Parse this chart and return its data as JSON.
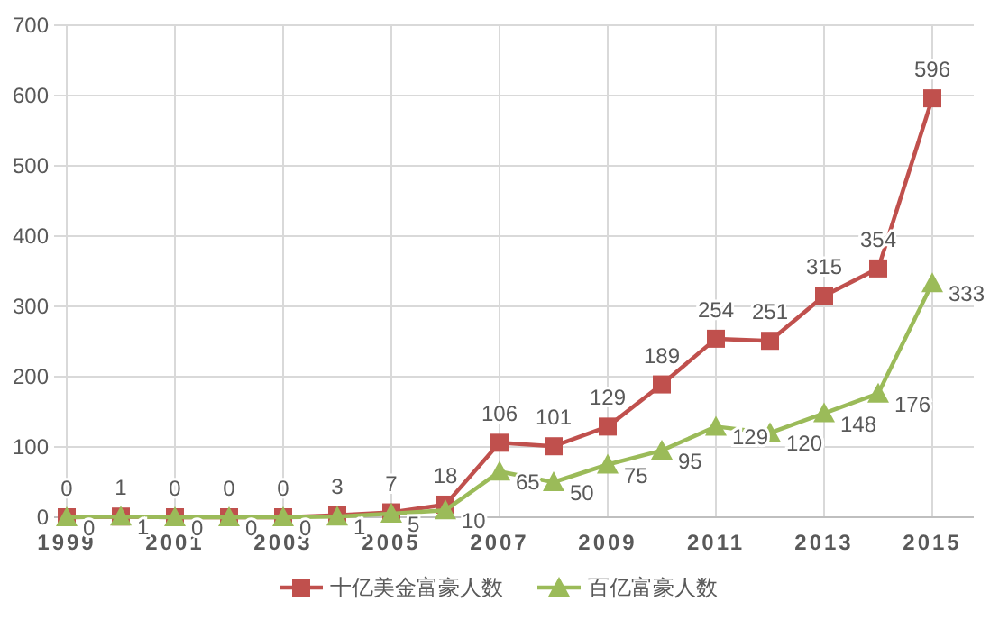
{
  "chart_data": {
    "type": "line",
    "categories": [
      "1999",
      null,
      "2001",
      null,
      "2003",
      null,
      "2005",
      null,
      "2007",
      null,
      "2009",
      null,
      "2011",
      null,
      "2013",
      null,
      "2015"
    ],
    "series": [
      {
        "name": "十亿美金富豪人数",
        "color": "#c0504d",
        "marker": "square",
        "values": [
          0,
          1,
          0,
          0,
          0,
          3,
          7,
          18,
          106,
          101,
          129,
          189,
          254,
          251,
          315,
          354,
          596
        ]
      },
      {
        "name": "百亿富豪人数",
        "color": "#9bbb59",
        "marker": "triangle",
        "values": [
          0,
          1,
          0,
          0,
          0,
          1,
          5,
          10,
          65,
          50,
          75,
          95,
          129,
          120,
          148,
          176,
          333
        ]
      }
    ],
    "ylim": [
      0,
      700
    ],
    "yticks": [
      0,
      100,
      200,
      300,
      400,
      500,
      600,
      700
    ],
    "grid": true,
    "legend": "bottom",
    "data_labels": true,
    "line_style": "solid"
  }
}
